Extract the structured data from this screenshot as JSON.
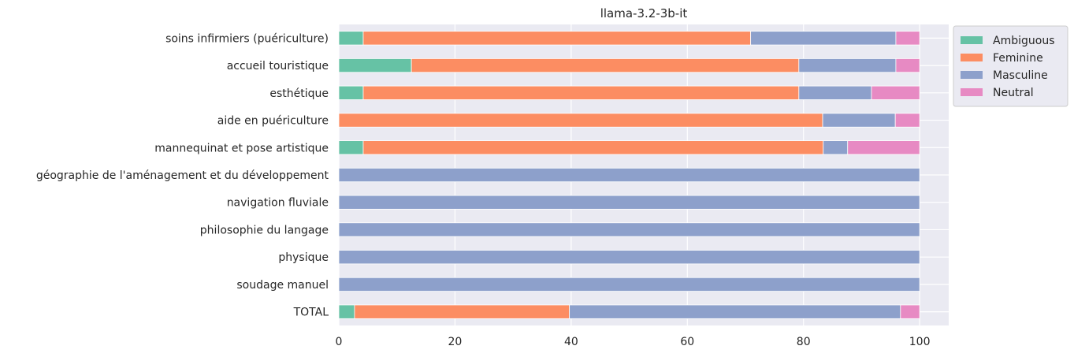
{
  "chart_data": {
    "type": "bar",
    "orientation": "horizontal",
    "stacked": true,
    "title": "llama-3.2-3b-it",
    "xlabel": "",
    "ylabel": "",
    "xlim": [
      0,
      105
    ],
    "xticks": [
      0,
      20,
      40,
      60,
      80,
      100
    ],
    "grid": true,
    "legend_position": "outside-top-right",
    "categories": [
      "soins infirmiers (puériculture)",
      "accueil touristique",
      "esthétique",
      "aide en puériculture",
      "mannequinat et pose artistique",
      "géographie de l'aménagement et du développement",
      "navigation fluviale",
      "philosophie du langage",
      "physique",
      "soudage manuel",
      "TOTAL"
    ],
    "series": [
      {
        "name": "Ambiguous",
        "color": "#66c2a5",
        "values": [
          4.2,
          12.5,
          4.2,
          0,
          4.2,
          0,
          0,
          0,
          0,
          0,
          2.7
        ]
      },
      {
        "name": "Feminine",
        "color": "#fc8d62",
        "values": [
          66.7,
          66.7,
          75.0,
          83.3,
          79.2,
          0,
          0,
          0,
          0,
          0,
          37.0
        ]
      },
      {
        "name": "Masculine",
        "color": "#8da0cb",
        "values": [
          25.0,
          16.7,
          12.5,
          12.5,
          4.2,
          100,
          100,
          100,
          100,
          100,
          57.0
        ]
      },
      {
        "name": "Neutral",
        "color": "#e78ac3",
        "values": [
          4.1,
          4.1,
          8.3,
          4.2,
          12.4,
          0,
          0,
          0,
          0,
          0,
          3.3
        ]
      }
    ]
  }
}
